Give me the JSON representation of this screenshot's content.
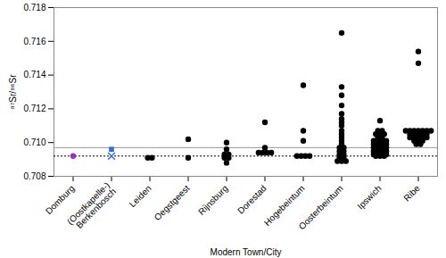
{
  "chart_data": {
    "type": "scatter",
    "xlabel": "Modern Town/City",
    "ylabel": "⁸⁷Sr/⁸⁶Sr",
    "categories": [
      "Domburg",
      "(Oostkapelle-)\nBerkenbosch",
      "Leiden",
      "Oegstgeest",
      "Rijnsburg",
      "Dorestad",
      "Hogebeintum",
      "Oosterbeintum",
      "Ipswich",
      "Ribe"
    ],
    "ylim": [
      0.708,
      0.718
    ],
    "yticks": [
      0.708,
      {
        "value": 0.71,
        "label": "0.710"
      },
      0.712,
      0.714,
      0.716,
      0.718
    ],
    "grid": false,
    "reference_lines": [
      {
        "value": 0.7097,
        "color": "#999999",
        "line_style": "solid"
      },
      {
        "value": 0.7092,
        "color": "#000000",
        "line_style": "dotted"
      }
    ],
    "groups": [
      {
        "category": "Domburg",
        "color": "#a02cc8",
        "marker": "circle",
        "values": [
          0.7092
        ]
      },
      {
        "category": "(Oostkapelle-)\nBerkenbosch",
        "color": "#2f6fd6",
        "marker": "square",
        "values": [
          0.7096
        ]
      },
      {
        "category": "(Oostkapelle-)\nBerkenbosch",
        "color": "#2f6fd6",
        "marker": "x",
        "values": [
          0.7092
        ]
      },
      {
        "category": "Leiden",
        "color": "#000000",
        "marker": "circle",
        "values": [
          0.7091,
          0.7091
        ]
      },
      {
        "category": "Oegstgeest",
        "color": "#000000",
        "marker": "circle",
        "values": [
          0.7102,
          0.7091
        ]
      },
      {
        "category": "Rijnsburg",
        "color": "#000000",
        "marker": "circle",
        "values": [
          0.71,
          0.7096,
          0.7093,
          0.7093,
          0.7091,
          0.7091,
          0.7088
        ]
      },
      {
        "category": "Dorestad",
        "color": "#000000",
        "marker": "circle",
        "values": [
          0.7112,
          0.7097,
          0.7094,
          0.7094,
          0.7094,
          0.7094
        ]
      },
      {
        "category": "Hogebeintum",
        "color": "#000000",
        "marker": "circle",
        "values": [
          0.7134,
          0.7107,
          0.7101,
          0.7092,
          0.7092,
          0.7092,
          0.7092
        ]
      },
      {
        "category": "Oosterbeintum",
        "color": "#000000",
        "marker": "circle",
        "values": [
          0.7165,
          0.7133,
          0.7128,
          0.7122,
          0.7117,
          0.7114,
          0.7112,
          0.711,
          0.7107,
          0.7105,
          0.7103,
          0.7101,
          0.7099,
          0.7097,
          0.7097,
          0.7095,
          0.7095,
          0.7093,
          0.7093,
          0.7091,
          0.7091,
          0.7089,
          0.7089,
          0.7089
        ]
      },
      {
        "category": "Ipswich",
        "color": "#000000",
        "marker": "circle",
        "values": [
          0.7113,
          0.7107,
          0.7107,
          0.7105,
          0.7105,
          0.7105,
          0.7103,
          0.7103,
          0.7101,
          0.7101,
          0.7101,
          0.7101,
          0.7099,
          0.7099,
          0.7099,
          0.7099,
          0.7097,
          0.7097,
          0.7097,
          0.7097,
          0.7095,
          0.7095,
          0.7095,
          0.7095,
          0.7093,
          0.7093,
          0.7093,
          0.7093,
          0.7092,
          0.7092,
          0.7092
        ]
      },
      {
        "category": "Ribe",
        "color": "#000000",
        "marker": "circle",
        "values": [
          0.7154,
          0.7147,
          0.7107,
          0.7107,
          0.7107,
          0.7107,
          0.7107,
          0.7107,
          0.7107,
          0.7105,
          0.7105,
          0.7105,
          0.7105,
          0.7105,
          0.7103,
          0.7103,
          0.7103,
          0.7103,
          0.7103,
          0.7101,
          0.7101,
          0.7101,
          0.7099,
          0.7099
        ]
      }
    ]
  }
}
